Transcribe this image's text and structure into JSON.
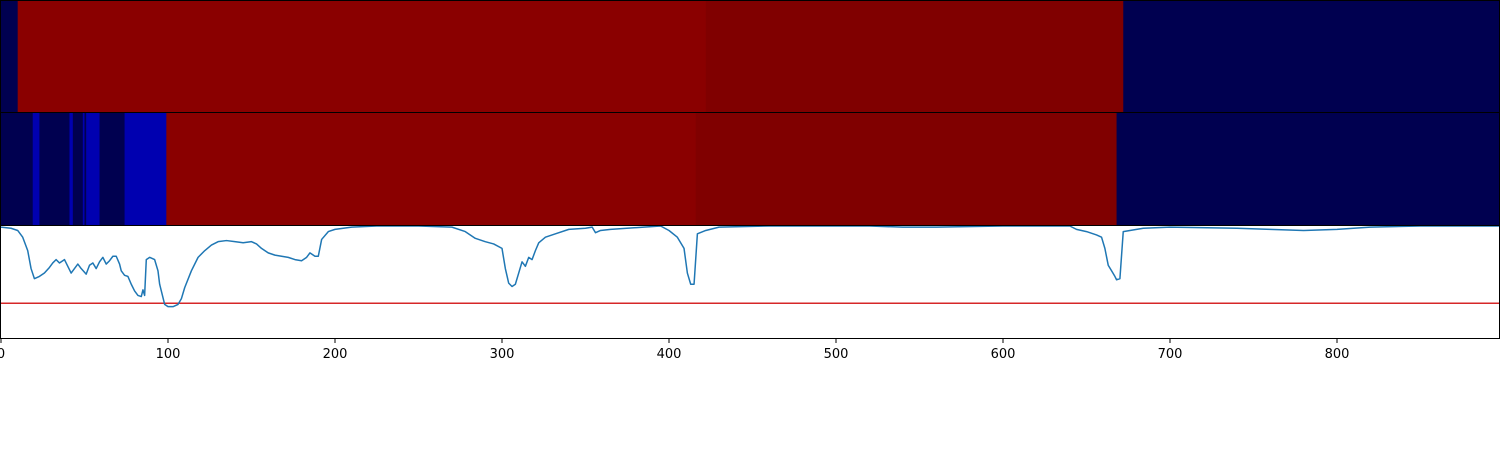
{
  "chart_data": [
    {
      "type": "heatmap",
      "panel": "top-strip",
      "xlim": [
        0,
        897
      ],
      "segments": [
        {
          "start": 0,
          "end": 10,
          "color": "#000050"
        },
        {
          "start": 10,
          "end": 422,
          "color": "#8a0000"
        },
        {
          "start": 422,
          "end": 672,
          "color": "#800000"
        },
        {
          "start": 672,
          "end": 897,
          "color": "#000050"
        }
      ]
    },
    {
      "type": "heatmap",
      "panel": "middle-strip",
      "xlim": [
        0,
        897
      ],
      "segments": [
        {
          "start": 0,
          "end": 19,
          "color": "#000050"
        },
        {
          "start": 19,
          "end": 23,
          "color": "#0000b0"
        },
        {
          "start": 23,
          "end": 41,
          "color": "#000050"
        },
        {
          "start": 41,
          "end": 43,
          "color": "#0000b0"
        },
        {
          "start": 43,
          "end": 49,
          "color": "#000050"
        },
        {
          "start": 49,
          "end": 50,
          "color": "#0000b0"
        },
        {
          "start": 50,
          "end": 51,
          "color": "#000050"
        },
        {
          "start": 51,
          "end": 59,
          "color": "#0000b0"
        },
        {
          "start": 59,
          "end": 74,
          "color": "#000050"
        },
        {
          "start": 74,
          "end": 99,
          "color": "#0000b0"
        },
        {
          "start": 99,
          "end": 416,
          "color": "#8a0000"
        },
        {
          "start": 416,
          "end": 668,
          "color": "#800000"
        },
        {
          "start": 668,
          "end": 897,
          "color": "#000050"
        }
      ]
    },
    {
      "type": "line",
      "panel": "bottom-line",
      "xlim": [
        0,
        897
      ],
      "ylim": [
        0,
        1
      ],
      "threshold": 0.31,
      "threshold_color": "#d62728",
      "line_color": "#1f77b4",
      "xticks": [
        0,
        100,
        200,
        300,
        400,
        500,
        600,
        700,
        800
      ],
      "series": [
        {
          "points": [
            [
              0,
              0.99
            ],
            [
              6,
              0.98
            ],
            [
              10,
              0.96
            ],
            [
              13,
              0.9
            ],
            [
              16,
              0.78
            ],
            [
              18,
              0.62
            ],
            [
              20,
              0.53
            ],
            [
              23,
              0.55
            ],
            [
              26,
              0.58
            ],
            [
              29,
              0.63
            ],
            [
              31,
              0.67
            ],
            [
              33,
              0.7
            ],
            [
              35,
              0.67
            ],
            [
              38,
              0.7
            ],
            [
              40,
              0.64
            ],
            [
              42,
              0.58
            ],
            [
              44,
              0.62
            ],
            [
              46,
              0.66
            ],
            [
              48,
              0.62
            ],
            [
              51,
              0.57
            ],
            [
              53,
              0.65
            ],
            [
              55,
              0.67
            ],
            [
              57,
              0.62
            ],
            [
              59,
              0.68
            ],
            [
              61,
              0.72
            ],
            [
              63,
              0.66
            ],
            [
              65,
              0.69
            ],
            [
              67,
              0.73
            ],
            [
              69,
              0.73
            ],
            [
              71,
              0.66
            ],
            [
              72,
              0.6
            ],
            [
              74,
              0.56
            ],
            [
              76,
              0.55
            ],
            [
              78,
              0.48
            ],
            [
              80,
              0.42
            ],
            [
              82,
              0.38
            ],
            [
              84,
              0.37
            ],
            [
              85,
              0.43
            ],
            [
              86,
              0.38
            ],
            [
              87,
              0.7
            ],
            [
              89,
              0.72
            ],
            [
              92,
              0.7
            ],
            [
              94,
              0.6
            ],
            [
              95,
              0.48
            ],
            [
              96,
              0.42
            ],
            [
              98,
              0.3
            ],
            [
              100,
              0.28
            ],
            [
              103,
              0.28
            ],
            [
              106,
              0.3
            ],
            [
              108,
              0.35
            ],
            [
              110,
              0.45
            ],
            [
              114,
              0.6
            ],
            [
              118,
              0.72
            ],
            [
              122,
              0.78
            ],
            [
              126,
              0.83
            ],
            [
              130,
              0.86
            ],
            [
              135,
              0.87
            ],
            [
              140,
              0.86
            ],
            [
              145,
              0.85
            ],
            [
              150,
              0.86
            ],
            [
              153,
              0.84
            ],
            [
              156,
              0.8
            ],
            [
              160,
              0.76
            ],
            [
              164,
              0.74
            ],
            [
              168,
              0.73
            ],
            [
              172,
              0.72
            ],
            [
              176,
              0.7
            ],
            [
              180,
              0.69
            ],
            [
              183,
              0.72
            ],
            [
              185,
              0.76
            ],
            [
              188,
              0.73
            ],
            [
              190,
              0.73
            ],
            [
              192,
              0.88
            ],
            [
              196,
              0.95
            ],
            [
              200,
              0.97
            ],
            [
              210,
              0.99
            ],
            [
              225,
              1.0
            ],
            [
              250,
              1.0
            ],
            [
              270,
              0.99
            ],
            [
              278,
              0.95
            ],
            [
              284,
              0.89
            ],
            [
              290,
              0.86
            ],
            [
              295,
              0.84
            ],
            [
              300,
              0.8
            ],
            [
              302,
              0.62
            ],
            [
              304,
              0.49
            ],
            [
              306,
              0.46
            ],
            [
              308,
              0.48
            ],
            [
              310,
              0.58
            ],
            [
              312,
              0.68
            ],
            [
              314,
              0.64
            ],
            [
              316,
              0.72
            ],
            [
              318,
              0.7
            ],
            [
              320,
              0.78
            ],
            [
              322,
              0.85
            ],
            [
              326,
              0.9
            ],
            [
              332,
              0.93
            ],
            [
              340,
              0.97
            ],
            [
              350,
              0.98
            ],
            [
              354,
              0.99
            ],
            [
              356,
              0.94
            ],
            [
              359,
              0.96
            ],
            [
              365,
              0.97
            ],
            [
              385,
              0.99
            ],
            [
              395,
              1.0
            ],
            [
              400,
              0.96
            ],
            [
              405,
              0.9
            ],
            [
              409,
              0.8
            ],
            [
              411,
              0.58
            ],
            [
              413,
              0.48
            ],
            [
              415,
              0.48
            ],
            [
              417,
              0.93
            ],
            [
              422,
              0.96
            ],
            [
              430,
              0.99
            ],
            [
              460,
              1.0
            ],
            [
              520,
              1.0
            ],
            [
              540,
              0.99
            ],
            [
              560,
              0.99
            ],
            [
              600,
              1.0
            ],
            [
              640,
              1.0
            ],
            [
              644,
              0.97
            ],
            [
              650,
              0.95
            ],
            [
              656,
              0.92
            ],
            [
              659,
              0.9
            ],
            [
              661,
              0.8
            ],
            [
              663,
              0.65
            ],
            [
              665,
              0.6
            ],
            [
              667,
              0.55
            ],
            [
              668,
              0.52
            ],
            [
              670,
              0.53
            ],
            [
              672,
              0.95
            ],
            [
              676,
              0.96
            ],
            [
              684,
              0.98
            ],
            [
              700,
              0.99
            ],
            [
              740,
              0.98
            ],
            [
              760,
              0.97
            ],
            [
              780,
              0.96
            ],
            [
              800,
              0.97
            ],
            [
              820,
              0.99
            ],
            [
              850,
              1.0
            ],
            [
              875,
              1.0
            ],
            [
              897,
              1.0
            ]
          ]
        }
      ]
    }
  ]
}
